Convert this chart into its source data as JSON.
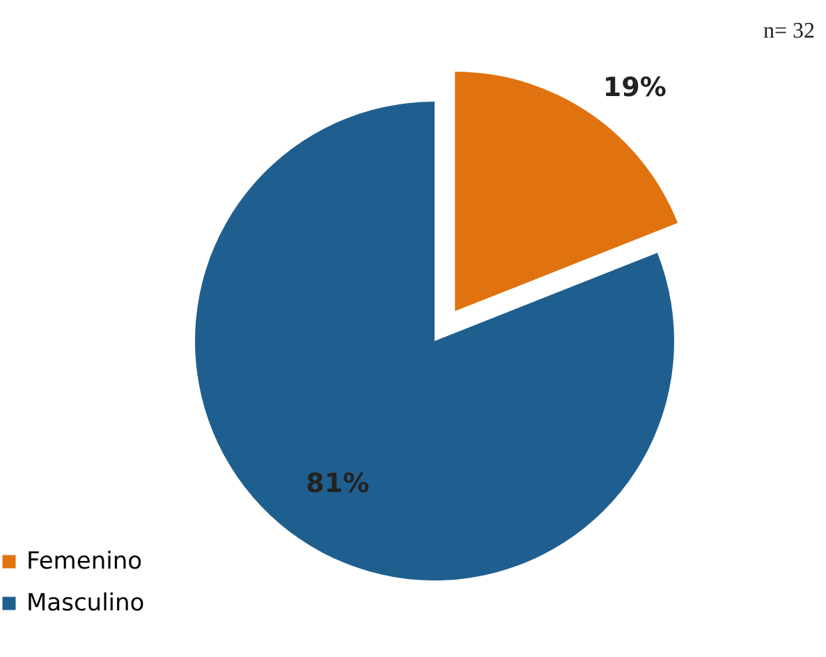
{
  "chart_data": {
    "type": "pie",
    "categories": [
      "Femenino",
      "Masculino"
    ],
    "values": [
      19,
      81
    ],
    "colors": [
      "#e0730f",
      "#1f5f8f"
    ],
    "value_labels": [
      "19%",
      "81%"
    ],
    "annotations": [
      "n= 32"
    ],
    "legend": "bottom left"
  }
}
